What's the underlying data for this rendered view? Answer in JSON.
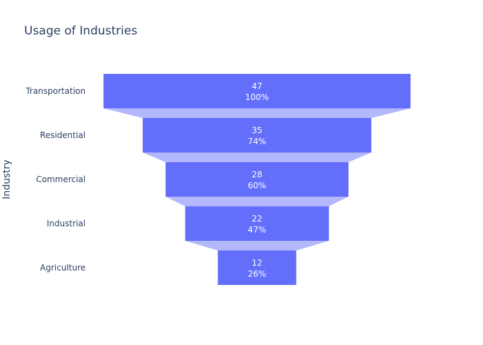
{
  "chart_data": {
    "type": "funnel",
    "title": "Usage of Industries",
    "ylabel": "Industry",
    "xlabel": "",
    "categories": [
      "Transportation",
      "Residential",
      "Commercial",
      "Industrial",
      "Agriculture"
    ],
    "values": [
      47,
      35,
      28,
      22,
      12
    ],
    "percent_initial": [
      "100%",
      "74%",
      "60%",
      "47%",
      "26%"
    ],
    "colors": {
      "bar": "#636efa",
      "connector": "#b3b7fc",
      "bar_text": "#ffffff",
      "label_text": "#2a3f5f"
    }
  }
}
